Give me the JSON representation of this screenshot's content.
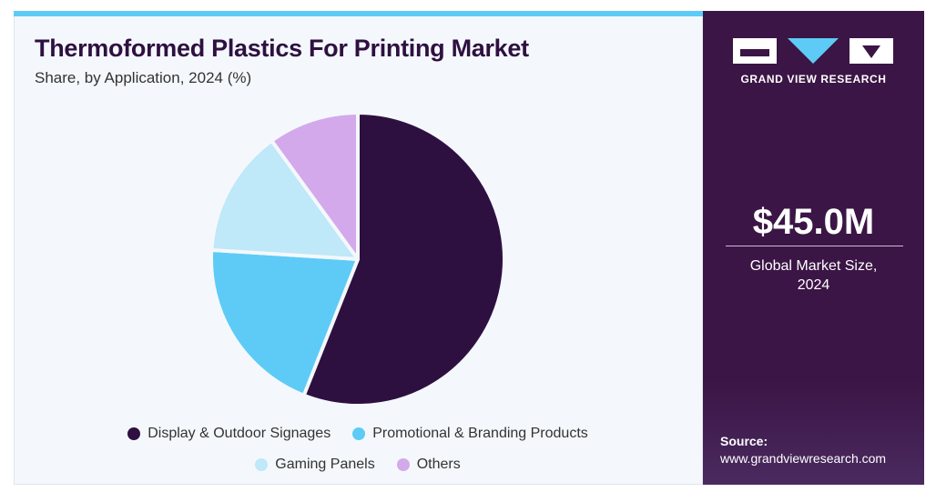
{
  "chart_data": {
    "type": "pie",
    "title": "Thermoformed Plastics For Printing Market",
    "subtitle": "Share, by Application, 2024 (%)",
    "categories": [
      "Display & Outdoor Signages",
      "Promotional & Branding Products",
      "Gaming Panels",
      "Others"
    ],
    "values": [
      56,
      20,
      14,
      10
    ],
    "colors": [
      "#2e1040",
      "#5dcbf6",
      "#bfe8f8",
      "#d3a9ec"
    ]
  },
  "sidebar": {
    "brand": "GRAND VIEW RESEARCH",
    "market_size": "$45.0M",
    "market_size_label": "Global Market Size, 2024",
    "source_label": "Source:",
    "source_url": "www.grandviewresearch.com"
  }
}
